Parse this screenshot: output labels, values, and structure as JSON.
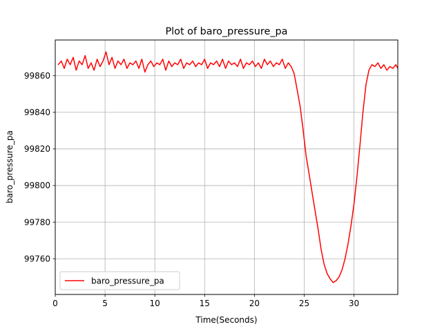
{
  "chart_data": {
    "type": "line",
    "title": "Plot of baro_pressure_pa",
    "xlabel": "Time(Seconds)",
    "ylabel": "baro_pressure_pa",
    "xlim": [
      0,
      34.4
    ],
    "ylim": [
      99740.5,
      99879.5
    ],
    "xticks": [
      0,
      5,
      10,
      15,
      20,
      25,
      30
    ],
    "yticks": [
      99760,
      99780,
      99800,
      99820,
      99840,
      99860
    ],
    "grid": true,
    "legend": "lower-left",
    "series": [
      {
        "name": "baro_pressure_pa",
        "color": "#ff0000",
        "x": [
          0.3,
          0.6,
          0.9,
          1.2,
          1.5,
          1.8,
          2.1,
          2.4,
          2.7,
          3.0,
          3.3,
          3.6,
          3.9,
          4.2,
          4.5,
          4.8,
          5.1,
          5.4,
          5.7,
          6.0,
          6.3,
          6.6,
          6.9,
          7.2,
          7.5,
          7.8,
          8.1,
          8.4,
          8.7,
          9.0,
          9.3,
          9.6,
          9.9,
          10.2,
          10.5,
          10.8,
          11.1,
          11.4,
          11.7,
          12.0,
          12.3,
          12.6,
          12.9,
          13.2,
          13.5,
          13.8,
          14.1,
          14.4,
          14.7,
          15.0,
          15.3,
          15.6,
          15.9,
          16.2,
          16.5,
          16.8,
          17.1,
          17.4,
          17.7,
          18.0,
          18.3,
          18.6,
          18.9,
          19.2,
          19.5,
          19.8,
          20.1,
          20.4,
          20.7,
          21.0,
          21.3,
          21.6,
          21.9,
          22.2,
          22.5,
          22.8,
          23.1,
          23.4,
          23.7,
          24.0,
          24.3,
          24.6,
          24.9,
          25.2,
          25.5,
          25.8,
          26.1,
          26.4,
          26.7,
          27.0,
          27.3,
          27.6,
          27.9,
          28.2,
          28.5,
          28.8,
          29.1,
          29.4,
          29.7,
          30.0,
          30.3,
          30.6,
          30.9,
          31.2,
          31.5,
          31.8,
          32.1,
          32.4,
          32.7,
          33.0,
          33.3,
          33.6,
          33.9,
          34.2,
          34.4
        ],
        "y": [
          99866,
          99868,
          99864,
          99869,
          99866,
          99870,
          99863,
          99868,
          99866,
          99871,
          99864,
          99867,
          99863,
          99869,
          99865,
          99868,
          99873,
          99866,
          99870,
          99864,
          99868,
          99866,
          99869,
          99864,
          99867,
          99866,
          99868,
          99864,
          99869,
          99862,
          99866,
          99868,
          99865,
          99867,
          99866,
          99869,
          99863,
          99868,
          99865,
          99867,
          99866,
          99869,
          99864,
          99867,
          99866,
          99868,
          99865,
          99867,
          99866,
          99869,
          99864,
          99867,
          99866,
          99868,
          99865,
          99869,
          99864,
          99868,
          99866,
          99867,
          99865,
          99869,
          99864,
          99867,
          99866,
          99868,
          99865,
          99867,
          99864,
          99869,
          99866,
          99868,
          99865,
          99867,
          99866,
          99869,
          99864,
          99867,
          99865,
          99861,
          99852,
          99843,
          99830,
          99816,
          99806,
          99796,
          99786,
          99776,
          99765,
          99757,
          99752,
          99749,
          99747,
          99748,
          99750,
          99754,
          99760,
          99768,
          99778,
          99790,
          99805,
          99822,
          99840,
          99855,
          99863,
          99866,
          99865,
          99867,
          99864,
          99866,
          99863,
          99865,
          99864,
          99866,
          99864
        ]
      }
    ]
  }
}
